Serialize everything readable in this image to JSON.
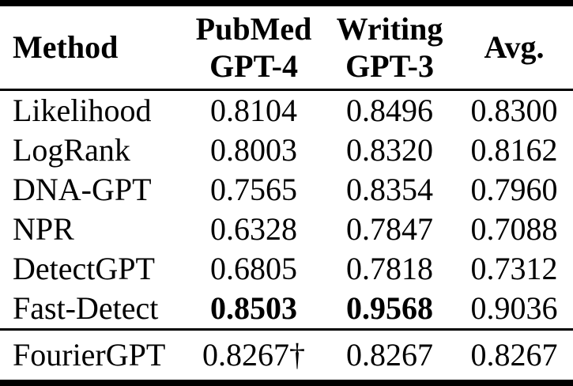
{
  "table": {
    "header": {
      "method": "Method",
      "pubmed_line1": "PubMed",
      "pubmed_line2": "GPT-4",
      "writing_line1": "Writing",
      "writing_line2": "GPT-3",
      "avg": "Avg."
    },
    "rows": [
      {
        "method": "Likelihood",
        "pubmed": "0.8104",
        "writing": "0.8496",
        "avg": "0.8300"
      },
      {
        "method": "LogRank",
        "pubmed": "0.8003",
        "writing": "0.8320",
        "avg": "0.8162"
      },
      {
        "method": "DNA-GPT",
        "pubmed": "0.7565",
        "writing": "0.8354",
        "avg": "0.7960"
      },
      {
        "method": "NPR",
        "pubmed": "0.6328",
        "writing": "0.7847",
        "avg": "0.7088"
      },
      {
        "method": "DetectGPT",
        "pubmed": "0.6805",
        "writing": "0.7818",
        "avg": "0.7312"
      },
      {
        "method": "Fast-Detect",
        "pubmed": "0.8503",
        "writing": "0.9568",
        "avg": "0.9036"
      }
    ],
    "footer": {
      "method": "FourierGPT",
      "pubmed": "0.8267†",
      "writing": "0.8267",
      "avg": "0.8267"
    },
    "colors": {
      "text": "#000000",
      "background": "#ffffff",
      "rule": "#000000"
    }
  }
}
